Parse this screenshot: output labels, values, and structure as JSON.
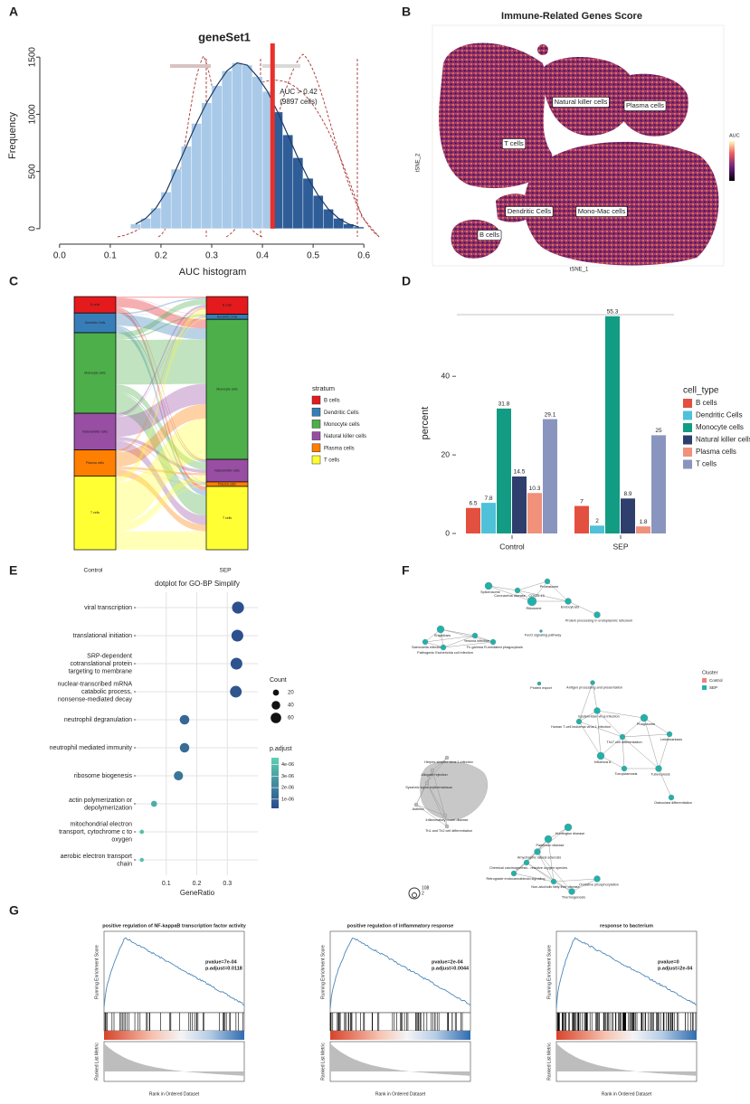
{
  "figure": {
    "panel_labels": [
      "A",
      "B",
      "C",
      "D",
      "E",
      "F",
      "G"
    ]
  },
  "chart_data": [
    {
      "type": "histogram",
      "title": "geneSet1",
      "x_label": "AUC histogram",
      "y_label": "Frequency",
      "bins": [
        0.14,
        0.16,
        0.18,
        0.2,
        0.22,
        0.24,
        0.26,
        0.28,
        0.3,
        0.32,
        0.34,
        0.36,
        0.38,
        0.4,
        0.42,
        0.44,
        0.46,
        0.48,
        0.5,
        0.52,
        0.54,
        0.56,
        0.58,
        0.6
      ],
      "values": [
        40,
        90,
        180,
        320,
        520,
        720,
        920,
        1100,
        1250,
        1380,
        1450,
        1430,
        1330,
        1200,
        1020,
        820,
        620,
        440,
        290,
        170,
        90,
        40,
        15
      ],
      "color": "#a9c9e8",
      "highlight_color": "#2f5d98",
      "threshold": 0.42,
      "threshold_color": "#e8302a",
      "annotation": "AUC > 0.42",
      "annotation_2": "(9897 cells)",
      "xlim": [
        -0.03,
        0.63
      ],
      "xticks": [
        {
          "value": 0,
          "label": "0.0"
        },
        0.1,
        0.2,
        0.3,
        0.4,
        0.5,
        0.6
      ],
      "ylim": [
        -80,
        1620
      ],
      "yticks": [
        0,
        500,
        1000,
        1500
      ]
    },
    {
      "type": "embedding",
      "title": "Immune-Related Genes Score",
      "x_label": "tSNE_1",
      "y_label": "tSNE_2",
      "legend_title": "AUC",
      "clusters": [
        "Natural killer cells",
        "Plasma cells",
        "T cells",
        "Dendritic Cells",
        "Mono-Mac cells",
        "B cells"
      ]
    },
    {
      "type": "alluvial",
      "axes": [
        "Control",
        "SEP"
      ],
      "legend_title": "stratum",
      "series": [
        {
          "name": "B cells",
          "color": "#e41a1c",
          "values": [
            6.5,
            7
          ]
        },
        {
          "name": "Dendritic Cells",
          "color": "#377eb8",
          "values": [
            7.8,
            2
          ]
        },
        {
          "name": "Monocyte cells",
          "color": "#4daf4a",
          "values": [
            31.8,
            55.3
          ]
        },
        {
          "name": "Natural killer cells",
          "color": "#984ea3",
          "values": [
            14.5,
            8.9
          ]
        },
        {
          "name": "Plasma cells",
          "color": "#ff7f00",
          "values": [
            10.3,
            1.8
          ]
        },
        {
          "name": "T cells",
          "color": "#ffff33",
          "values": [
            29.1,
            25
          ]
        }
      ]
    },
    {
      "type": "bar",
      "y_label": "percent",
      "legend_title": "cell_type",
      "categories": [
        "Control",
        "SEP"
      ],
      "series": [
        {
          "name": "B cells",
          "color": "#e3503f",
          "values": [
            6.5,
            7
          ]
        },
        {
          "name": "Dendritic Cells",
          "color": "#4fc1d8",
          "values": [
            7.8,
            2
          ]
        },
        {
          "name": "Monocyte cells",
          "color": "#129c83",
          "values": [
            31.8,
            55.3
          ]
        },
        {
          "name": "Natural killer cells",
          "color": "#2e3f6e",
          "values": [
            14.5,
            8.9
          ]
        },
        {
          "name": "Plasma cells",
          "color": "#f0917b",
          "values": [
            10.3,
            1.8
          ]
        },
        {
          "name": "T cells",
          "color": "#8a95bf",
          "values": [
            29.1,
            25
          ]
        }
      ],
      "ylim": [
        0,
        58
      ],
      "yticks": [
        0,
        20,
        40
      ],
      "grid": false
    },
    {
      "type": "dotplot",
      "title": "dotplot for GO-BP Simplify",
      "x_label": "GeneRatio",
      "categories": [
        "viral transcription",
        "translational initiation",
        "SRP-dependent\ncotranslational protein\ntargeting to membrane",
        "nuclear-transcribed mRNA\ncatabolic process,\nnonsense-mediated decay",
        "neutrophil degranulation",
        "neutrophil mediated immunity",
        "ribosome biogenesis",
        "actin polymerization or\ndepolymerization",
        "mitochondrial electron\ntransport, cytochrome c to\noxygen",
        "aerobic electron transport\nchain"
      ],
      "values": [
        0.335,
        0.333,
        0.33,
        0.328,
        0.16,
        0.16,
        0.14,
        0.06,
        0.02,
        0.02
      ],
      "counts": [
        78,
        76,
        75,
        74,
        50,
        49,
        46,
        20,
        10,
        9
      ],
      "p_adjust": [
        4e-07,
        4e-07,
        5e-07,
        6e-07,
        1.2e-06,
        1.3e-06,
        1.6e-06,
        3.4e-06,
        4e-06,
        4.1e-06
      ],
      "xlim": [
        0,
        0.4
      ],
      "xticks": [
        0.1,
        0.2,
        0.3
      ],
      "grid": true,
      "size_legend_title": "Count",
      "size_ticks": [
        20,
        40,
        60
      ],
      "color_legend_title": "p.adjust",
      "color_lim": [
        2e-07,
        4.6e-06
      ],
      "color_range": [
        "#2a4a8c",
        "#5ed0b2"
      ],
      "color_ticks": [
        {
          "value": 4e-06,
          "label": "4e-06"
        },
        {
          "value": 3e-06,
          "label": "3e-06"
        },
        {
          "value": 2e-06,
          "label": "2e-06"
        },
        {
          "value": 1e-06,
          "label": "1e-06"
        }
      ]
    },
    {
      "type": "network",
      "legend_title": "Cluster",
      "legend": [
        "Control",
        "SEP"
      ],
      "legend_colors": [
        "#f08080",
        "#20b2aa"
      ],
      "size_ticks": [
        108,
        2
      ],
      "nodes": [
        "Spliceosome",
        "Coronavirus disease - COVID-19",
        "Proteasome",
        "Ribosome",
        "Endocytosis",
        "Protein processing in endoplasmic reticulum",
        "Shigellosis",
        "Yersinia infection",
        "Salmonella infection",
        "Pathogenic Escherichia coli infection",
        "Fc gamma R-mediated phagocytosis",
        "FoxO signaling pathway",
        "Protein export",
        "Antigen processing and presentation",
        "Epstein-Barr virus infection",
        "Human T-cell leukemia virus 1 infection",
        "Phagosome",
        "Th17 cell differentiation",
        "Leishmaniasis",
        "Influenza A",
        "Toxoplasmosis",
        "Tuberculosis",
        "Osteoclast differentiation",
        "Herpes simplex virus 1 infection",
        "Allograft rejection",
        "Systemic lupus erythematosus",
        "Asthma",
        "Inflammatory bowel disease",
        "Th1 and Th2 cell differentiation",
        "Huntington disease",
        "Parkinson disease",
        "Amyotrophic lateral sclerosis",
        "Chemical carcinogenesis - reactive oxygen species",
        "Retrograde endocannabinoid signaling",
        "Non-alcoholic fatty liver disease",
        "Oxidative phosphorylation",
        "Thermogenesis"
      ]
    },
    {
      "type": "gsea",
      "y_label": "Running Enrichment Score",
      "y2_label": "Ranked List Metric",
      "x_label": "Rank in Ordered Dataset",
      "plots": [
        {
          "title": "positive regulation of NF-kappaB transcription factor activity",
          "pvalue": "pvalue=7e-04",
          "p_adjust": "p.adjust=0.0118"
        },
        {
          "title": "positive regulation of inflammatory response",
          "pvalue": "pvalue=2e-04",
          "p_adjust": "p.adjust=0.0044"
        },
        {
          "title": "response to bacterium",
          "pvalue": "pvalue=0",
          "p_adjust": "p.adjust=2e-04"
        }
      ]
    }
  ]
}
